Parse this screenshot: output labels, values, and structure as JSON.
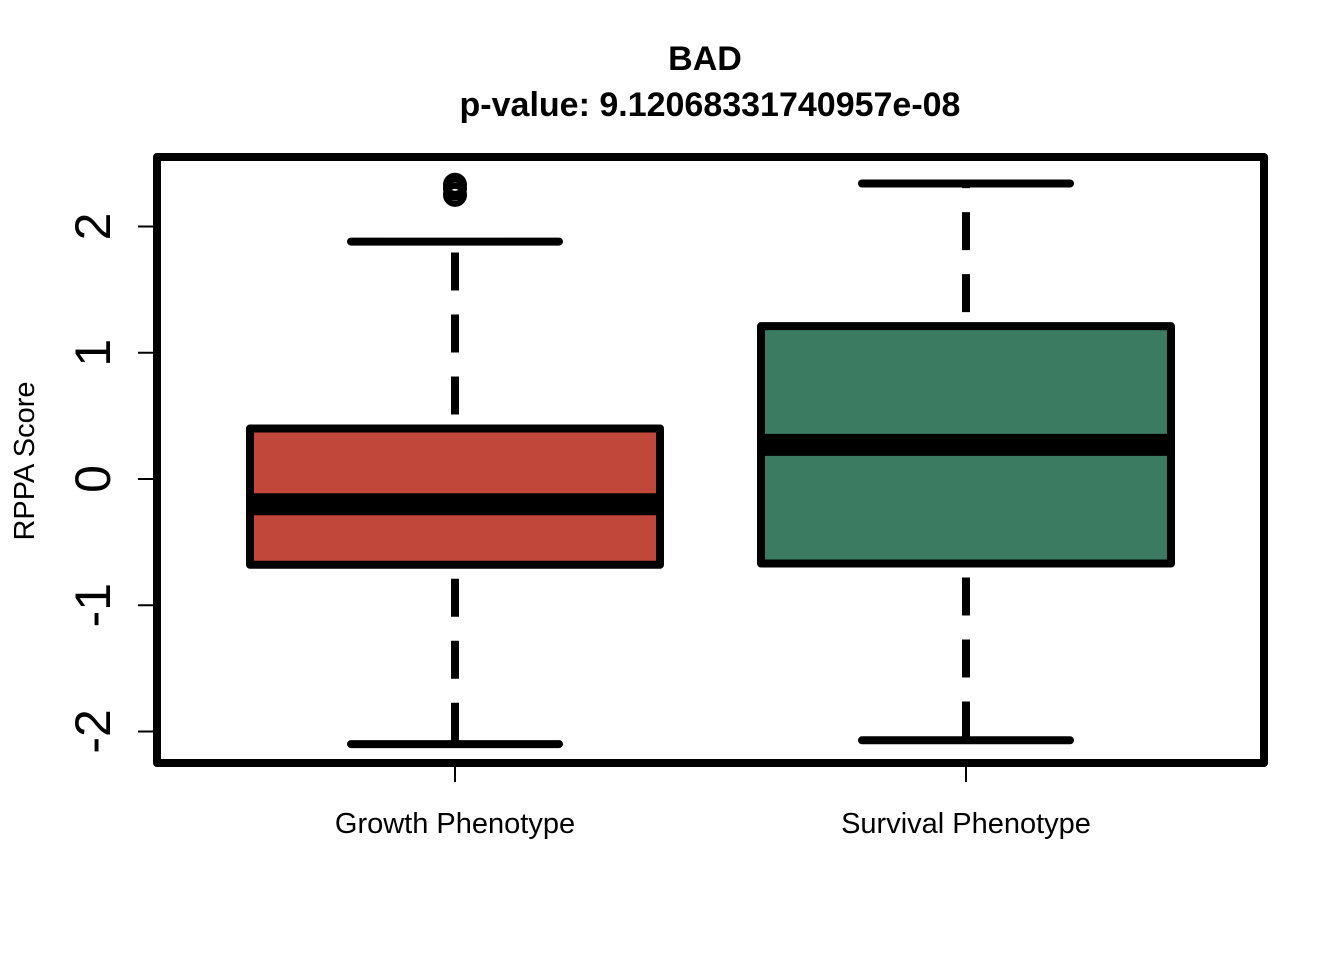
{
  "chart_data": {
    "type": "box",
    "title": "BAD",
    "subtitle": "p-value: 9.12068331740957e-08",
    "xlabel": "",
    "ylabel": "RPPA Score",
    "ylim": [
      -2.25,
      2.55
    ],
    "yticks": [
      "-2",
      "-1",
      "0",
      "1",
      "2"
    ],
    "grid": false,
    "legend": "none",
    "categories": [
      "Growth Phenotype",
      "Survival Phenotype"
    ],
    "boxes": [
      {
        "label": "Growth Phenotype",
        "color": "#c0473a",
        "whisker_low": -2.1,
        "q1": -0.68,
        "median": -0.2,
        "q3": 0.4,
        "whisker_high": 1.88,
        "outliers": [
          2.25,
          2.3,
          2.33
        ]
      },
      {
        "label": "Survival Phenotype",
        "color": "#3a7b62",
        "whisker_low": -2.07,
        "q1": -0.67,
        "median": 0.27,
        "q3": 1.21,
        "whisker_high": 2.34,
        "outliers": []
      }
    ]
  }
}
